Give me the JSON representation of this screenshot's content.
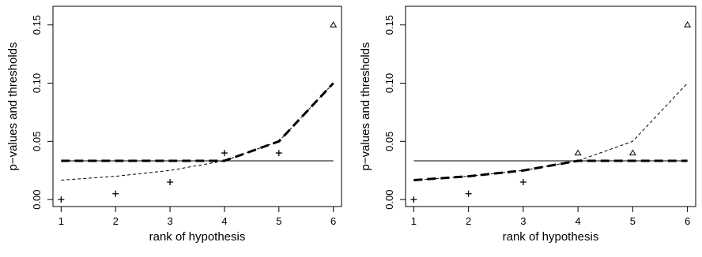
{
  "chart_data": [
    {
      "type": "line",
      "xlabel": "rank of hypothesis",
      "ylabel": "p−values and thresholds",
      "xlim": [
        0.85,
        6.15
      ],
      "ylim": [
        -0.006,
        0.166
      ],
      "x_ticks": [
        1,
        2,
        3,
        4,
        5,
        6
      ],
      "y_ticks": [
        0.0,
        0.05,
        0.1,
        0.15
      ],
      "y_tick_labels": [
        "0.00",
        "0.05",
        "0.10",
        "0.15"
      ],
      "grid": false,
      "x": [
        1,
        2,
        3,
        4,
        5,
        6
      ],
      "series": [
        {
          "style": "solid-thin",
          "values": [
            0.0333,
            0.0333,
            0.0333,
            0.0333,
            0.0333,
            0.0333
          ]
        },
        {
          "style": "dashed-thin",
          "values": [
            0.0167,
            0.02,
            0.025,
            0.0333,
            0.05,
            0.1
          ]
        },
        {
          "style": "dashed-thick",
          "values": [
            0.0333,
            0.0333,
            0.0333,
            0.0333,
            0.05,
            0.1
          ]
        },
        {
          "style": "points",
          "values": [
            0.0,
            0.005,
            0.015,
            0.04,
            0.04,
            0.15
          ],
          "markers": [
            "plus",
            "plus",
            "plus",
            "plus",
            "plus",
            "triangle"
          ]
        }
      ]
    },
    {
      "type": "line",
      "xlabel": "rank of hypothesis",
      "ylabel": "p−values and thresholds",
      "xlim": [
        0.85,
        6.15
      ],
      "ylim": [
        -0.006,
        0.166
      ],
      "x_ticks": [
        1,
        2,
        3,
        4,
        5,
        6
      ],
      "y_ticks": [
        0.0,
        0.05,
        0.1,
        0.15
      ],
      "y_tick_labels": [
        "0.00",
        "0.05",
        "0.10",
        "0.15"
      ],
      "grid": false,
      "x": [
        1,
        2,
        3,
        4,
        5,
        6
      ],
      "series": [
        {
          "style": "solid-thin",
          "values": [
            0.0333,
            0.0333,
            0.0333,
            0.0333,
            0.0333,
            0.0333
          ]
        },
        {
          "style": "dashed-thin",
          "values": [
            0.0167,
            0.02,
            0.025,
            0.0333,
            0.05,
            0.1
          ]
        },
        {
          "style": "dashed-thick",
          "values": [
            0.0167,
            0.02,
            0.025,
            0.0333,
            0.0333,
            0.0333
          ]
        },
        {
          "style": "points",
          "values": [
            0.0,
            0.005,
            0.015,
            0.04,
            0.04,
            0.15
          ],
          "markers": [
            "plus",
            "plus",
            "plus",
            "triangle",
            "triangle",
            "triangle"
          ]
        }
      ]
    }
  ]
}
